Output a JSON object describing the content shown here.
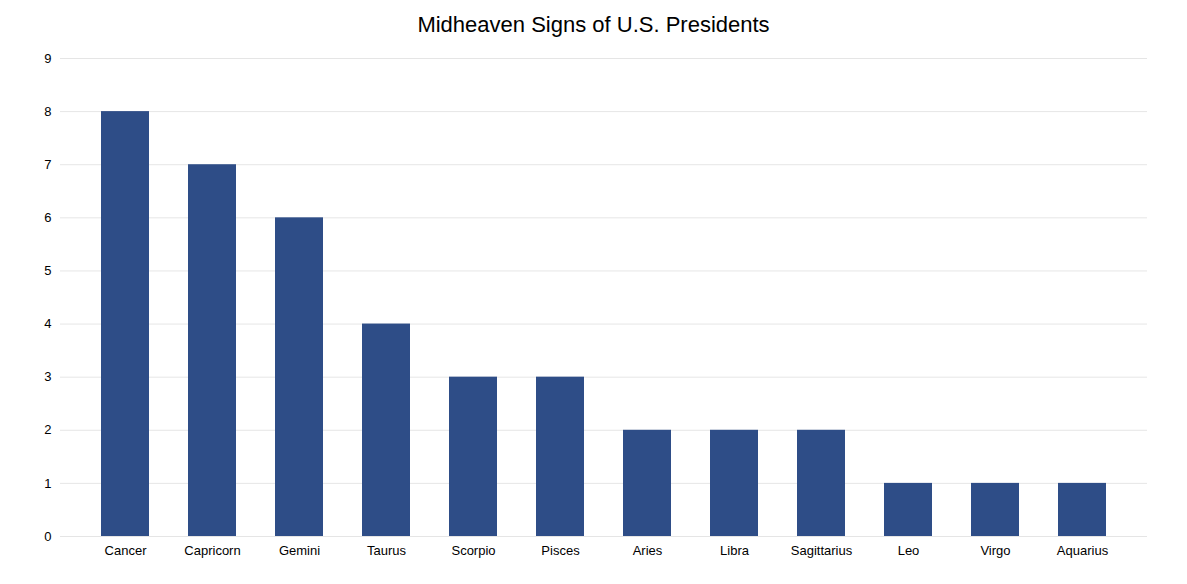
{
  "chart_data": {
    "type": "bar",
    "title": "Midheaven Signs of U.S. Presidents",
    "categories": [
      "Cancer",
      "Capricorn",
      "Gemini",
      "Taurus",
      "Scorpio",
      "Pisces",
      "Aries",
      "Libra",
      "Sagittarius",
      "Leo",
      "Virgo",
      "Aquarius"
    ],
    "values": [
      8,
      7,
      6,
      4,
      3,
      3,
      2,
      2,
      2,
      1,
      1,
      1
    ],
    "color": "#2E4D87",
    "ylim": [
      0,
      9
    ],
    "yticks": [
      0,
      1,
      2,
      3,
      4,
      5,
      6,
      7,
      8,
      9
    ],
    "grid": true
  }
}
